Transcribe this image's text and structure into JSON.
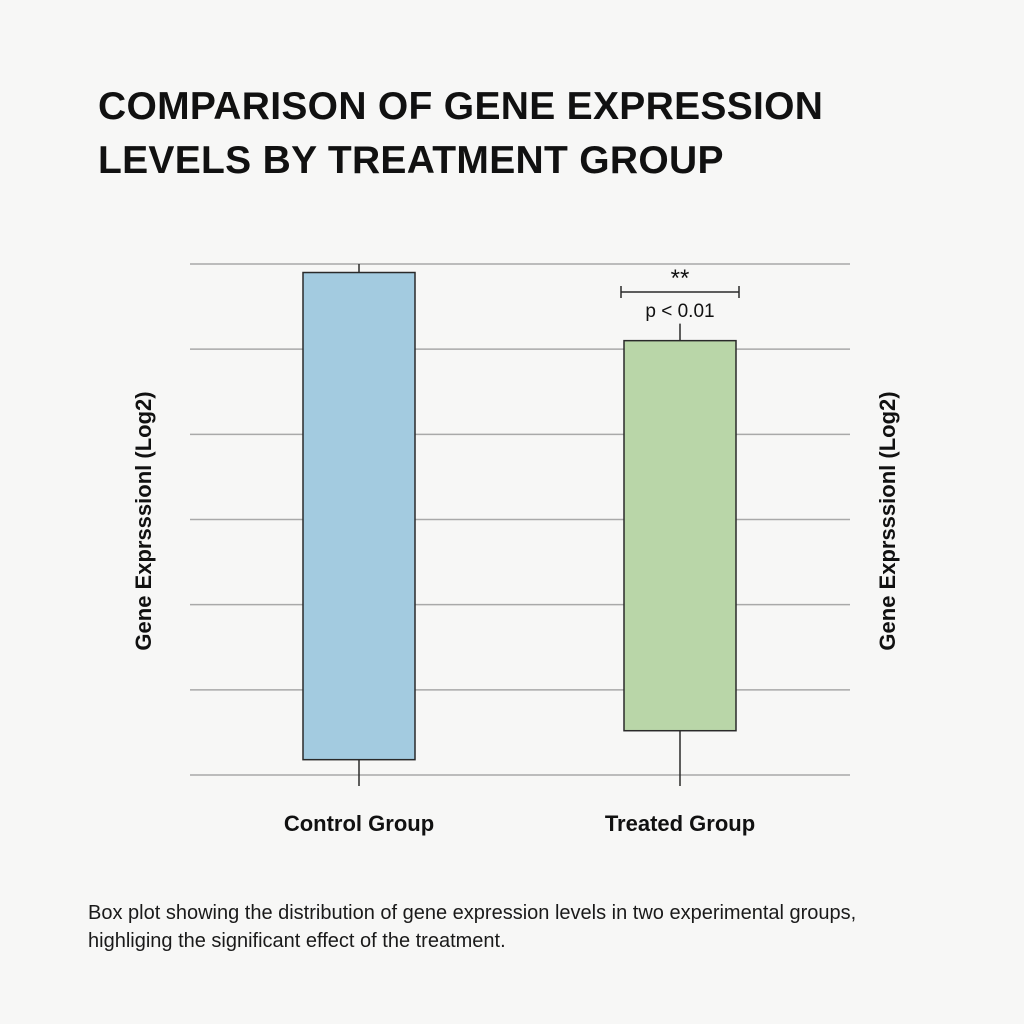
{
  "title_lines": [
    "COMPARISON OF GENE EXPRESSION",
    "LEVELS BY TREATMENT GROUP"
  ],
  "caption_lines": [
    "Box plot showing the distribution of gene expression levels in two experimental groups,",
    "highliging the significant effect of the treatment."
  ],
  "colors": {
    "control_fill": "#a3cbe0",
    "treated_fill": "#b9d6a8",
    "grid": "#a9a9a9",
    "outline": "#2a2a2a"
  },
  "chart_data": {
    "type": "box",
    "title": "COMPARISON OF GENE EXPRESSION LEVELS BY TREATMENT GROUP",
    "ylabel_left": "Gene Exprsssionl (Log2)",
    "ylabel_right": "Gene Exprsssionl (Log2)",
    "xlabel": "",
    "grid": true,
    "ylim": [
      0,
      6
    ],
    "gridlines": [
      0,
      1,
      2,
      3,
      4,
      5,
      6
    ],
    "categories": [
      "Control Group",
      "Treated Group"
    ],
    "boxes": [
      {
        "name": "Control Group",
        "whisker_low": 0,
        "q1": 0.18,
        "q3": 5.9,
        "whisker_high": 6.0
      },
      {
        "name": "Treated Group",
        "whisker_low": 0,
        "q1": 0.52,
        "q3": 5.1,
        "whisker_high": 5.3
      }
    ],
    "annotation": {
      "stars": "**",
      "pvalue": "p < 0.01",
      "category": "Treated Group"
    }
  }
}
